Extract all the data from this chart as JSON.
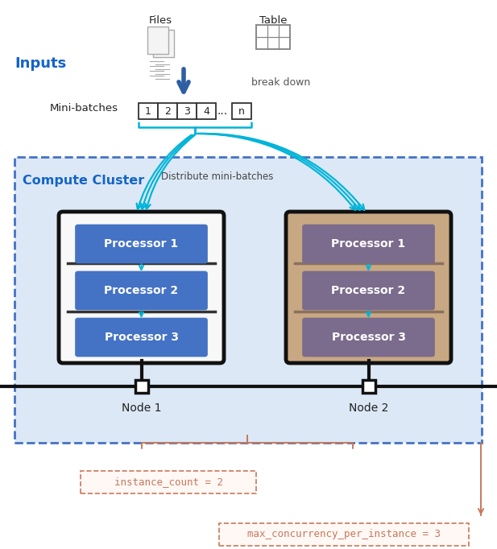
{
  "bg_color": "#ffffff",
  "inputs_label": "Inputs",
  "inputs_color": "#1464c8",
  "files_label": "Files",
  "table_label": "Table",
  "breakdown_label": "break down",
  "minibatches_label": "Mini-batches",
  "batch_nums": [
    "1",
    "2",
    "3",
    "4"
  ],
  "distribute_label": "Distribute mini-batches",
  "compute_cluster_label": "Compute Cluster",
  "cluster_border_color": "#4472c4",
  "node1_label": "Node 1",
  "node2_label": "Node 2",
  "proc_labels": [
    "Processor 1",
    "Processor 2",
    "Processor 3"
  ],
  "node1_proc_color": "#4472c4",
  "node1_outer_color": "#111111",
  "node1_inner_bg": "#ffffff",
  "node2_proc_color": "#7b6b8c",
  "node2_bg_color": "#c8a882",
  "proc_text_color": "#ffffff",
  "arrow_color": "#2e5fa3",
  "cyan_color": "#00b4d8",
  "instance_count_label": "instance_count = 2",
  "max_conc_label": "max_concurrency_per_instance = 3",
  "annotation_color": "#c8785a",
  "cluster_bg": "#dce8f5"
}
